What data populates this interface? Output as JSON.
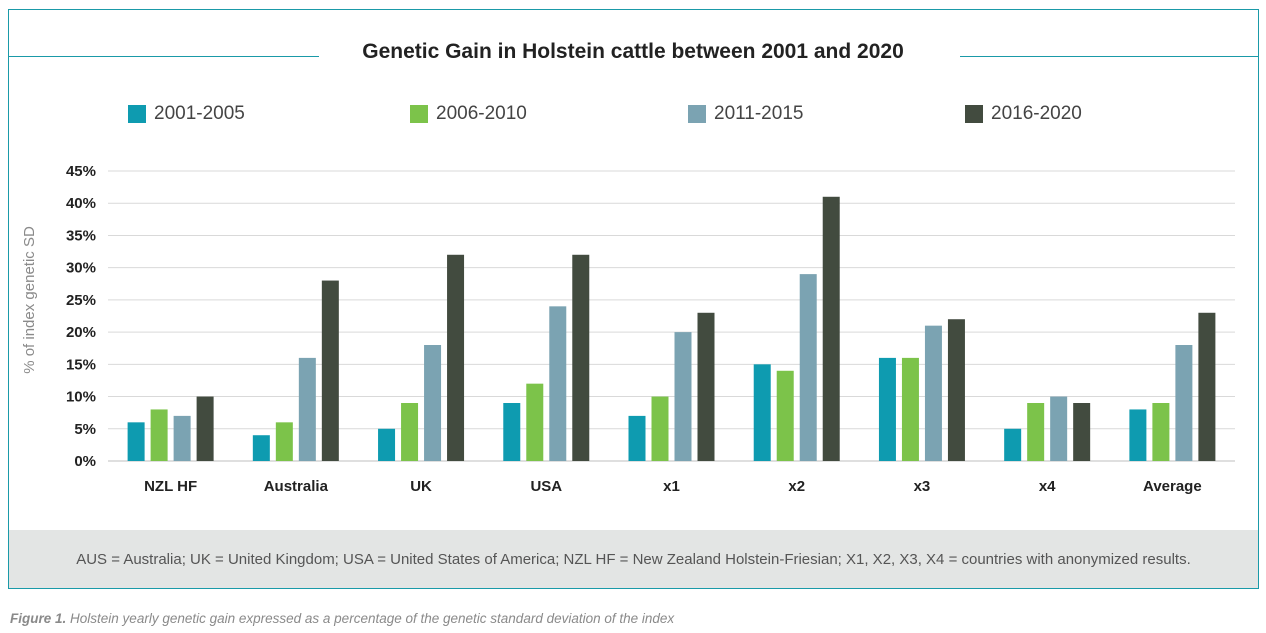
{
  "chart_data": {
    "type": "bar",
    "title": "Genetic Gain in Holstein cattle between 2001 and 2020",
    "ylabel": "% of index genetic SD",
    "xlabel": "",
    "ylim": [
      0,
      45
    ],
    "yticks": [
      "0%",
      "5%",
      "10%",
      "15%",
      "20%",
      "25%",
      "30%",
      "35%",
      "40%",
      "45%"
    ],
    "grid": true,
    "legend_position": "top",
    "categories": [
      "NZL HF",
      "Australia",
      "UK",
      "USA",
      "x1",
      "x2",
      "x3",
      "x4",
      "Average"
    ],
    "series": [
      {
        "name": "2001-2005",
        "color": "#0e9bb0",
        "values": [
          6,
          4,
          5,
          9,
          7,
          15,
          16,
          5,
          8
        ]
      },
      {
        "name": "2006-2010",
        "color": "#7cc34a",
        "values": [
          8,
          6,
          9,
          12,
          10,
          14,
          16,
          9,
          9
        ]
      },
      {
        "name": "2011-2015",
        "color": "#7ba3b2",
        "values": [
          7,
          16,
          18,
          24,
          20,
          29,
          21,
          10,
          18
        ]
      },
      {
        "name": "2016-2020",
        "color": "#424b3f",
        "values": [
          10,
          28,
          32,
          32,
          23,
          41,
          22,
          9,
          23
        ]
      }
    ]
  },
  "footer": {
    "note": "AUS = Australia; UK = United Kingdom; USA = United States of America; NZL HF = New Zealand Holstein-Friesian; X1, X2, X3, X4 = countries with anonymized results."
  },
  "caption": {
    "label": "Figure 1.",
    "text": "Holstein yearly genetic gain expressed as a percentage of the genetic standard deviation of the index"
  }
}
